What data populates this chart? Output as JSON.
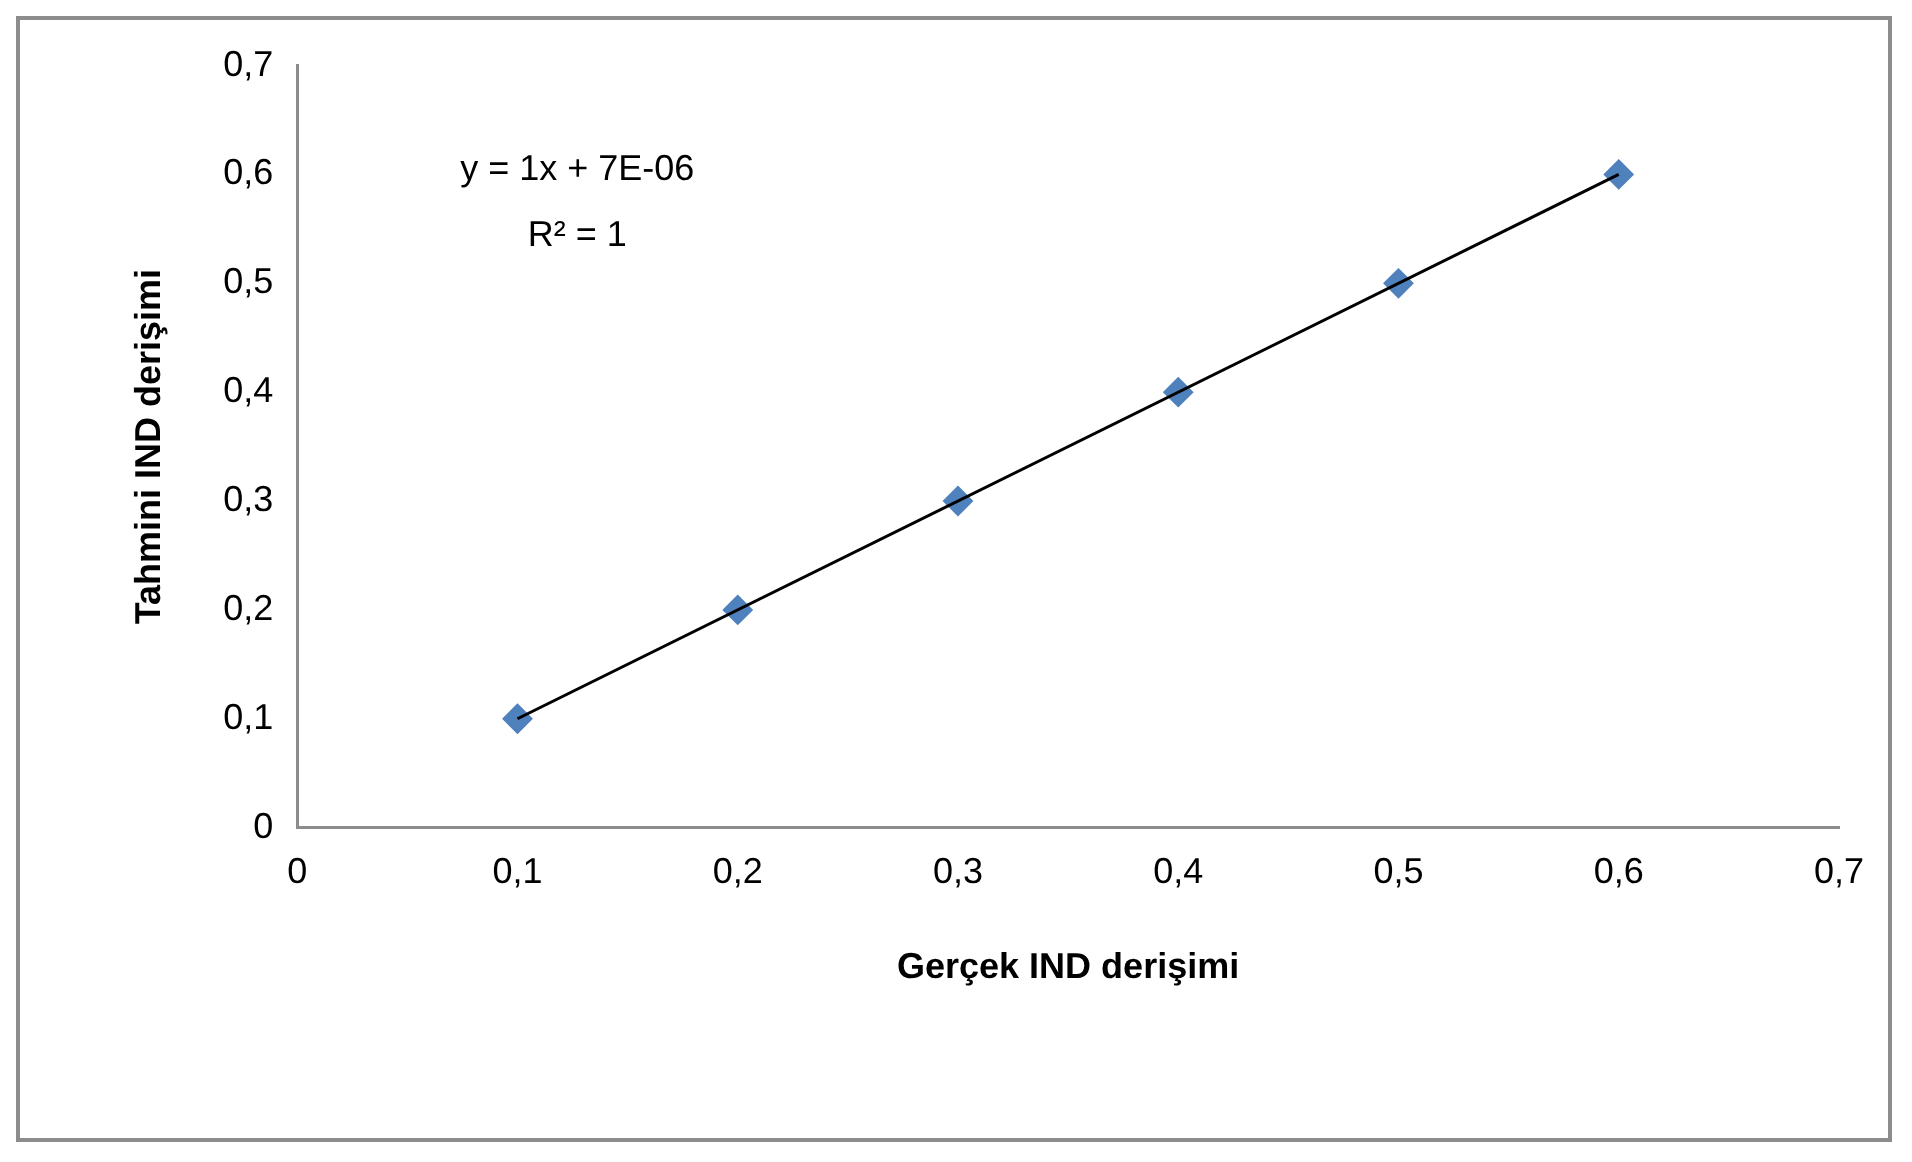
{
  "chart_data": {
    "type": "scatter",
    "xlabel": "Gerçek IND derişimi",
    "ylabel": "Tahmini IND derişimi",
    "annotations": [
      "y = 1x + 7E-06",
      "R² = 1"
    ],
    "series": [
      {
        "type": "scatter",
        "color": "#4f81bd",
        "marker": "diamond",
        "x": [
          0.1,
          0.2,
          0.3,
          0.4,
          0.5,
          0.6
        ],
        "values": [
          0.1,
          0.2,
          0.3,
          0.4,
          0.5,
          0.6
        ]
      },
      {
        "type": "line",
        "color": "#000000",
        "marker": "none",
        "x": [
          0.1,
          0.6
        ],
        "values": [
          0.1,
          0.6
        ]
      }
    ],
    "xlim": [
      0,
      0.7
    ],
    "ylim": [
      0,
      0.7
    ],
    "xticks": [
      0,
      {
        "value": 0.1,
        "label": "0,1"
      },
      {
        "value": 0.2,
        "label": "0,2"
      },
      {
        "value": 0.3,
        "label": "0,3"
      },
      {
        "value": 0.4,
        "label": "0,4"
      },
      {
        "value": 0.5,
        "label": "0,5"
      },
      {
        "value": 0.6,
        "label": "0,6"
      },
      {
        "value": 0.7,
        "label": "0,7"
      }
    ],
    "yticks": [
      0,
      {
        "value": 0.1,
        "label": "0,1"
      },
      {
        "value": 0.2,
        "label": "0,2"
      },
      {
        "value": 0.3,
        "label": "0,3"
      },
      {
        "value": 0.4,
        "label": "0,4"
      },
      {
        "value": 0.5,
        "label": "0,5"
      },
      {
        "value": 0.6,
        "label": "0,6"
      },
      {
        "value": 0.7,
        "label": "0,7"
      }
    ],
    "grid": false,
    "legend": false
  }
}
